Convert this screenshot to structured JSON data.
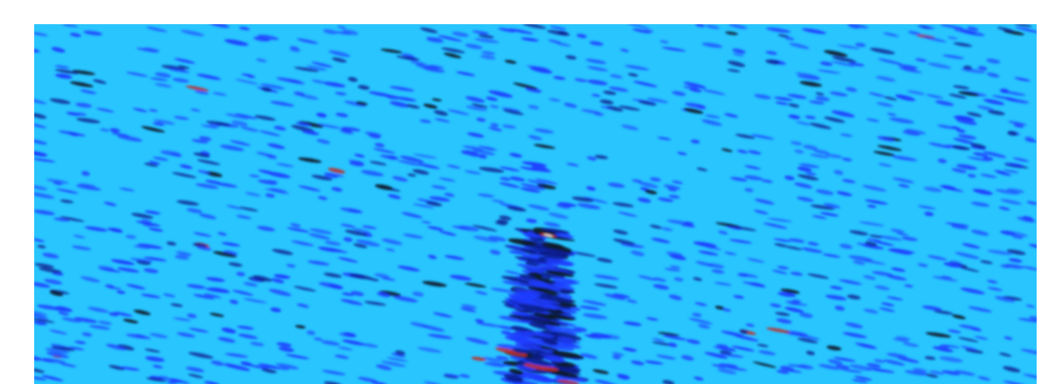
{
  "image": {
    "kind": "spectrogram-like heatmap",
    "colormap": {
      "background": "#29c5ff",
      "low": "#1f3cff",
      "mid": "#0a1f8f",
      "dark": "#0a1a2a",
      "hot": "#c0302a",
      "peak": "#ffffff"
    }
  }
}
